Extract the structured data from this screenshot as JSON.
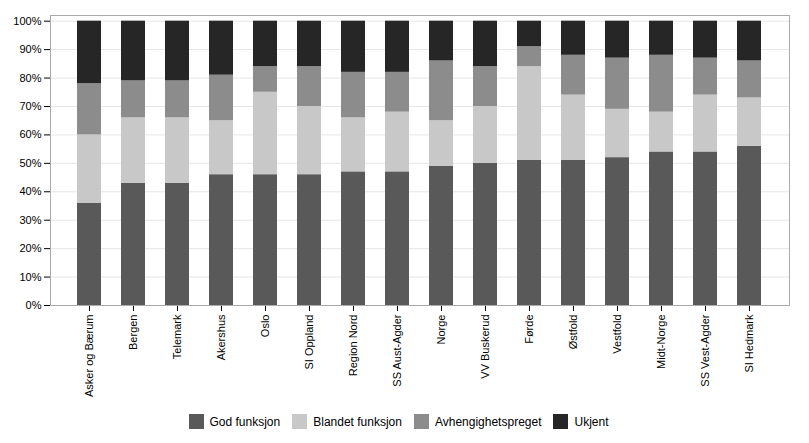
{
  "chart_data": {
    "type": "bar",
    "stacked": true,
    "categories": [
      "Asker og Bærum",
      "Bergen",
      "Telemark",
      "Akershus",
      "Oslo",
      "SI Oppland",
      "Region Nord",
      "SS Aust-Agder",
      "Norge",
      "VV Buskerud",
      "Førde",
      "Østfold",
      "Vestfold",
      "Midt-Norge",
      "SS Vest-Agder",
      "SI Hedmark"
    ],
    "series": [
      {
        "name": "God funksjon",
        "color": "#595959",
        "values": [
          36,
          43,
          43,
          46,
          46,
          46,
          47,
          47,
          49,
          50,
          51,
          51,
          52,
          54,
          54,
          56
        ]
      },
      {
        "name": "Blandet funksjon",
        "color": "#c8c8c8",
        "values": [
          24,
          23,
          23,
          19,
          29,
          24,
          19,
          21,
          16,
          20,
          33,
          23,
          17,
          14,
          20,
          17
        ]
      },
      {
        "name": "Avhengighetspreget",
        "color": "#8c8c8c",
        "values": [
          18,
          13,
          13,
          16,
          9,
          14,
          16,
          14,
          21,
          14,
          7,
          14,
          18,
          20,
          13,
          13
        ]
      },
      {
        "name": "Ukjent",
        "color": "#262626",
        "values": [
          22,
          21,
          21,
          19,
          16,
          16,
          18,
          18,
          14,
          16,
          9,
          12,
          13,
          12,
          13,
          14
        ]
      }
    ],
    "ylim": [
      0,
      102
    ],
    "yticks": [
      {
        "value": 0,
        "label": "0%"
      },
      {
        "value": 10,
        "label": "10%"
      },
      {
        "value": 20,
        "label": "20%"
      },
      {
        "value": 30,
        "label": "30%"
      },
      {
        "value": 40,
        "label": "40%"
      },
      {
        "value": 50,
        "label": "50%"
      },
      {
        "value": 60,
        "label": "60%"
      },
      {
        "value": 70,
        "label": "70%"
      },
      {
        "value": 80,
        "label": "80%"
      },
      {
        "value": 90,
        "label": "90%"
      },
      {
        "value": 100,
        "label": "100%"
      }
    ],
    "grid": true,
    "legend": "bottom"
  }
}
